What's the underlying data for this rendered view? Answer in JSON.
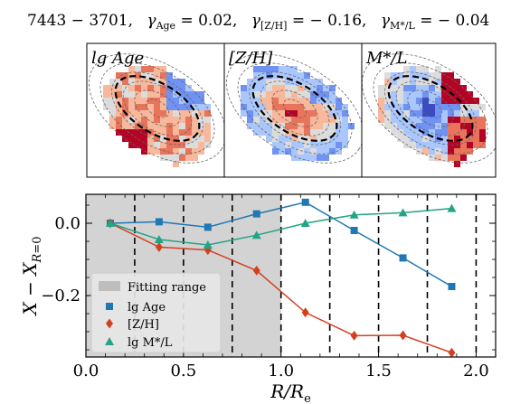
{
  "title": "7443 − 3701,  γ_Age = 0.02,  γ_[Z/H] = − 0.16,  γ_M*/L = − 0.04",
  "title_parts": {
    "galaxy": "7443 − 3701,",
    "gamma_age": "= 0.02,",
    "gamma_zh": "= − 0.16,",
    "gamma_ml": "= − 0.04"
  },
  "maps": [
    {
      "label": "lg Age",
      "colormap": "coolwarm"
    },
    {
      "label": "[Z/H]",
      "colormap": "coolwarm"
    },
    {
      "label": "M*/L",
      "colormap": "coolwarm"
    }
  ],
  "chart_data": {
    "type": "line",
    "xlabel": "R/R_e",
    "ylabel": "X − X_{R=0}",
    "xlim": [
      0.0,
      2.1
    ],
    "ylim": [
      -0.37,
      0.08
    ],
    "xticks": [
      "0.0",
      "0.5",
      "1.0",
      "1.5",
      "2.0"
    ],
    "yticks": [
      "0.0",
      "−0.2"
    ],
    "xtick_values": [
      0.0,
      0.5,
      1.0,
      1.5,
      2.0
    ],
    "ytick_values": [
      0.0,
      -0.2
    ],
    "fitting_range": [
      0.0,
      1.0
    ],
    "vertical_lines": [
      0.25,
      0.5,
      0.75,
      1.0,
      1.25,
      1.5,
      1.75,
      2.0
    ],
    "x": [
      0.125,
      0.375,
      0.625,
      0.875,
      1.125,
      1.375,
      1.625,
      1.875
    ],
    "series": [
      {
        "name": "lg Age",
        "marker": "square",
        "color": "#1f77b4",
        "values": [
          0.0,
          0.004,
          -0.011,
          0.026,
          0.058,
          -0.02,
          -0.096,
          -0.175
        ]
      },
      {
        "name": "[Z/H]",
        "marker": "diamond",
        "color": "#d4401f",
        "values": [
          0.0,
          -0.066,
          -0.074,
          -0.131,
          -0.247,
          -0.311,
          -0.31,
          -0.358
        ]
      },
      {
        "name": "lg M*/L",
        "marker": "triangle",
        "color": "#23a485",
        "values": [
          0.0,
          -0.045,
          -0.06,
          -0.033,
          0.0,
          0.023,
          0.029,
          0.041
        ]
      }
    ],
    "legend": {
      "position": "bottom-left",
      "entries": [
        "Fitting range",
        "lg Age",
        "[Z/H]",
        "lg M*/L"
      ]
    }
  }
}
